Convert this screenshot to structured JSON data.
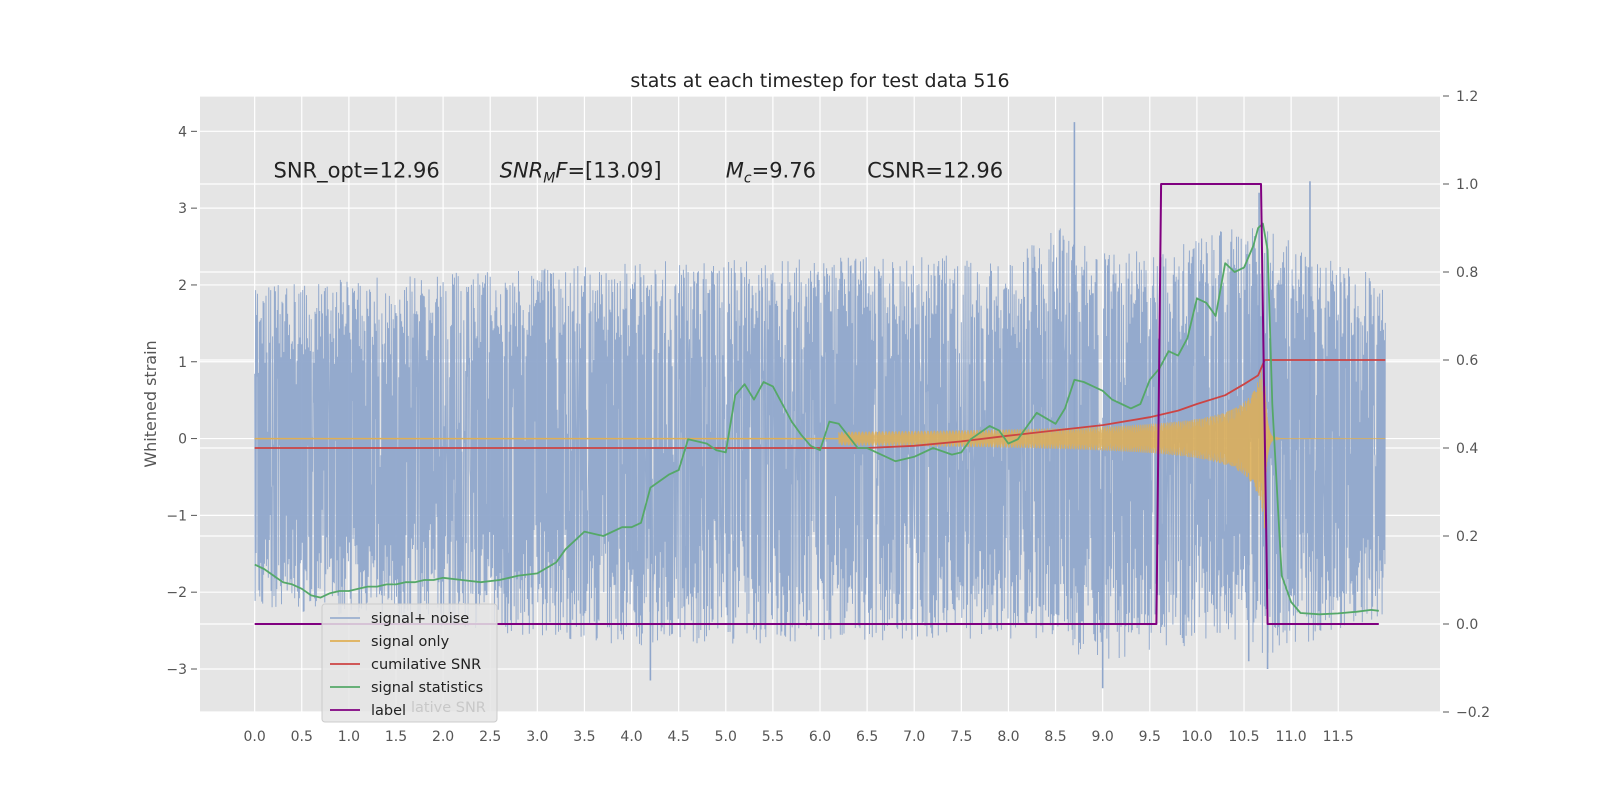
{
  "chart_data": {
    "type": "line",
    "title": "stats at each timestep for test data 516",
    "xlabel": "",
    "ylabel": "Whitened strain",
    "y2label": "",
    "xlim": [
      -0.58,
      12.58
    ],
    "ylim": [
      -3.56,
      4.46
    ],
    "y2lim": [
      -0.2,
      1.2
    ],
    "grid": true,
    "x_ticks": [
      0.0,
      0.5,
      1.0,
      1.5,
      2.0,
      2.5,
      3.0,
      3.5,
      4.0,
      4.5,
      5.0,
      5.5,
      6.0,
      6.5,
      7.0,
      7.5,
      8.0,
      8.5,
      9.0,
      9.5,
      10.0,
      10.5,
      11.0,
      11.5
    ],
    "x_tick_labels": [
      "0.0",
      "0.5",
      "1.0",
      "1.5",
      "2.0",
      "2.5",
      "3.0",
      "3.5",
      "4.0",
      "4.5",
      "5.0",
      "5.5",
      "6.0",
      "6.5",
      "7.0",
      "7.5",
      "8.0",
      "8.5",
      "9.0",
      "9.5",
      "10.0",
      "10.5",
      "11.0",
      "11.5"
    ],
    "y_ticks": [
      -3,
      -2,
      -1,
      0,
      1,
      2,
      3,
      4
    ],
    "y_tick_labels": [
      "−3",
      "−2",
      "−1",
      "0",
      "1",
      "2",
      "3",
      "4"
    ],
    "y2_ticks": [
      -0.2,
      0.0,
      0.2,
      0.4,
      0.6,
      0.8,
      1.0,
      1.2
    ],
    "y2_tick_labels": [
      "−0.2",
      "0.0",
      "0.2",
      "0.4",
      "0.6",
      "0.8",
      "1.0",
      "1.2"
    ],
    "legend_position": "lower-left",
    "legend": [
      "signal+ noise",
      "signal only",
      "cumilative SNR",
      "signal statistics",
      "label"
    ],
    "legend_ghost": "lative SNR",
    "annotations": [
      {
        "text": "SNR_opt=12.96",
        "x": 0.2,
        "y": 3.4
      },
      {
        "text": "SNR_MF=[13.09]",
        "x": 2.6,
        "y": 3.4
      },
      {
        "text": "M_c=9.76",
        "x": 5.0,
        "y": 3.4
      },
      {
        "text": "CSNR=12.96",
        "x": 6.5,
        "y": 3.4
      }
    ],
    "series": [
      {
        "name": "signal+ noise",
        "axis": "left",
        "color": "#8fa6cb",
        "x_range": [
          0.0,
          12.0
        ],
        "envelope": {
          "upper": {
            "x": [
              0.0,
              4.0,
              8.0,
              8.6,
              8.75,
              9.5,
              10.5,
              10.75,
              11.5,
              12.0
            ],
            "y": [
              2.0,
              2.3,
              2.4,
              2.8,
              2.6,
              2.4,
              2.8,
              2.7,
              2.3,
              2.1
            ]
          },
          "lower": {
            "x": [
              0.0,
              4.0,
              8.0,
              9.0,
              10.5,
              10.75,
              11.5,
              12.0
            ],
            "y": [
              -2.2,
              -2.7,
              -2.6,
              -2.9,
              -2.6,
              -2.9,
              -2.5,
              -2.3
            ]
          }
        },
        "spikes": [
          [
            8.7,
            4.12
          ],
          [
            10.66,
            3.2
          ],
          [
            11.2,
            3.35
          ],
          [
            9.0,
            -3.25
          ],
          [
            4.2,
            -3.15
          ],
          [
            10.75,
            -3.0
          ],
          [
            10.55,
            -2.9
          ]
        ]
      },
      {
        "name": "signal only",
        "axis": "left",
        "color": "#dfaf55",
        "chirp": {
          "start": 6.2,
          "merger": 10.72,
          "end": 12.0,
          "peak_amplitude": 1.0
        }
      },
      {
        "name": "cumilative SNR",
        "axis": "right",
        "color": "#cc4444",
        "x": [
          0.0,
          6.5,
          7.0,
          7.5,
          8.0,
          8.5,
          9.0,
          9.5,
          9.8,
          10.0,
          10.3,
          10.5,
          10.65,
          10.72,
          12.0
        ],
        "y": [
          0.4,
          0.4,
          0.405,
          0.415,
          0.428,
          0.44,
          0.452,
          0.47,
          0.485,
          0.5,
          0.52,
          0.545,
          0.565,
          0.6,
          0.6
        ]
      },
      {
        "name": "signal statistics",
        "axis": "right",
        "color": "#55a868",
        "x": [
          0.0,
          0.1,
          0.2,
          0.3,
          0.4,
          0.5,
          0.6,
          0.7,
          0.8,
          0.9,
          1.0,
          1.1,
          1.2,
          1.3,
          1.4,
          1.5,
          1.6,
          1.7,
          1.8,
          1.9,
          2.0,
          2.2,
          2.4,
          2.6,
          2.8,
          3.0,
          3.2,
          3.3,
          3.5,
          3.7,
          3.9,
          4.0,
          4.1,
          4.2,
          4.3,
          4.4,
          4.5,
          4.6,
          4.8,
          4.9,
          5.0,
          5.1,
          5.2,
          5.3,
          5.4,
          5.5,
          5.6,
          5.7,
          5.8,
          5.9,
          6.0,
          6.1,
          6.2,
          6.4,
          6.5,
          6.6,
          6.8,
          7.0,
          7.2,
          7.4,
          7.5,
          7.6,
          7.8,
          7.9,
          8.0,
          8.1,
          8.2,
          8.3,
          8.5,
          8.6,
          8.7,
          8.8,
          8.9,
          9.0,
          9.1,
          9.2,
          9.3,
          9.4,
          9.5,
          9.6,
          9.7,
          9.8,
          9.9,
          10.0,
          10.1,
          10.2,
          10.3,
          10.4,
          10.5,
          10.6,
          10.65,
          10.7,
          10.75,
          10.8,
          10.9,
          11.0,
          11.1,
          11.3,
          11.5,
          11.7,
          11.85,
          11.93
        ],
        "y": [
          0.135,
          0.125,
          0.11,
          0.095,
          0.09,
          0.08,
          0.065,
          0.06,
          0.07,
          0.075,
          0.075,
          0.08,
          0.085,
          0.085,
          0.09,
          0.09,
          0.095,
          0.095,
          0.1,
          0.1,
          0.105,
          0.1,
          0.095,
          0.1,
          0.11,
          0.115,
          0.14,
          0.17,
          0.21,
          0.2,
          0.22,
          0.22,
          0.23,
          0.31,
          0.325,
          0.34,
          0.35,
          0.42,
          0.41,
          0.395,
          0.39,
          0.52,
          0.545,
          0.51,
          0.55,
          0.54,
          0.5,
          0.46,
          0.43,
          0.405,
          0.395,
          0.46,
          0.455,
          0.4,
          0.4,
          0.39,
          0.37,
          0.38,
          0.4,
          0.385,
          0.39,
          0.42,
          0.45,
          0.44,
          0.41,
          0.42,
          0.45,
          0.48,
          0.455,
          0.49,
          0.555,
          0.55,
          0.54,
          0.53,
          0.51,
          0.5,
          0.49,
          0.5,
          0.555,
          0.58,
          0.62,
          0.61,
          0.65,
          0.74,
          0.73,
          0.7,
          0.82,
          0.8,
          0.81,
          0.86,
          0.9,
          0.91,
          0.85,
          0.5,
          0.11,
          0.05,
          0.025,
          0.022,
          0.024,
          0.028,
          0.032,
          0.03
        ]
      },
      {
        "name": "label",
        "axis": "right",
        "color": "#800080",
        "x": [
          0.0,
          9.57,
          9.62,
          10.68,
          10.75,
          11.93
        ],
        "y": [
          0.0,
          0.0,
          1.0,
          1.0,
          0.0,
          0.0
        ]
      }
    ]
  }
}
